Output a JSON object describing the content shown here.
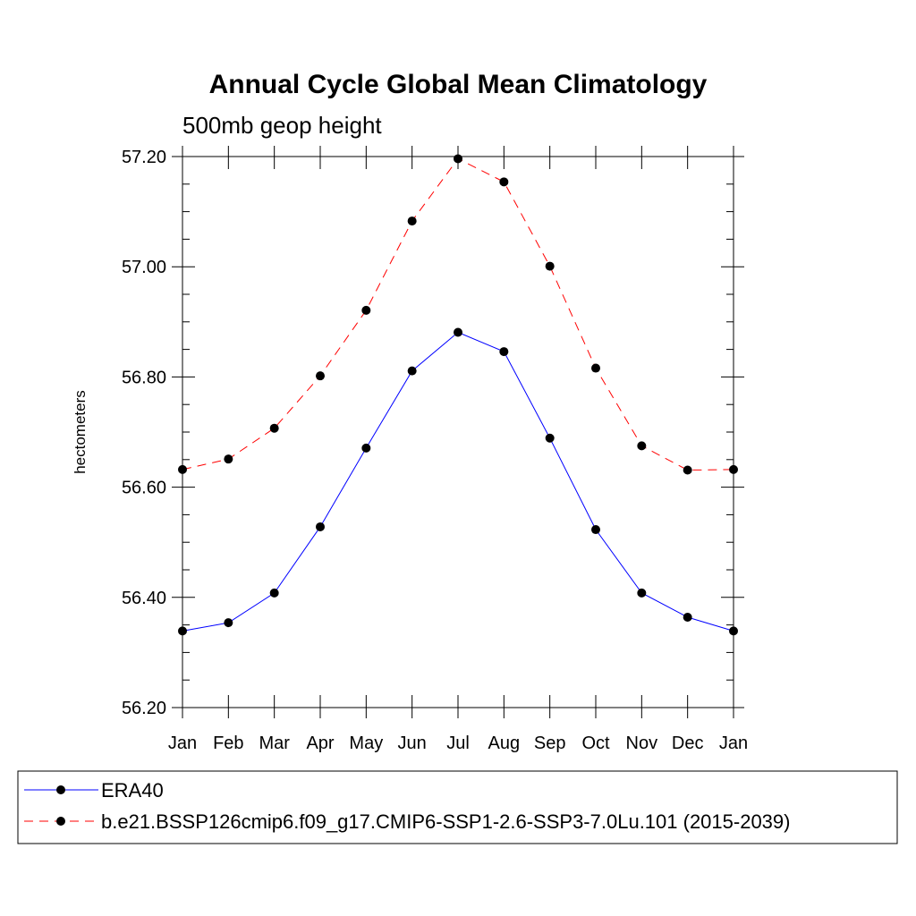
{
  "chart_data": {
    "type": "line",
    "title": "Annual Cycle Global Mean Climatology",
    "subtitle": "500mb geop height",
    "xlabel": "",
    "ylabel": "hectometers",
    "categories": [
      "Jan",
      "Feb",
      "Mar",
      "Apr",
      "May",
      "Jun",
      "Jul",
      "Aug",
      "Sep",
      "Oct",
      "Nov",
      "Dec",
      "Jan"
    ],
    "ylim": [
      56.2,
      57.2
    ],
    "yticks": [
      "56.20",
      "56.40",
      "56.60",
      "56.80",
      "57.00",
      "57.20"
    ],
    "grid": false,
    "legend_position": "bottom",
    "series": [
      {
        "name": "ERA40",
        "color": "#0000ff",
        "dash": "solid",
        "marker": "filled-circle",
        "values": [
          56.339,
          56.354,
          56.408,
          56.528,
          56.671,
          56.811,
          56.881,
          56.846,
          56.689,
          56.523,
          56.408,
          56.364,
          56.339
        ]
      },
      {
        "name": "b.e21.BSSP126cmip6.f09_g17.CMIP6-SSP1-2.6-SSP3-7.0Lu.101 (2015-2039)",
        "color": "#ff0000",
        "dash": "dashed",
        "marker": "filled-circle",
        "values": [
          56.632,
          56.651,
          56.707,
          56.802,
          56.921,
          57.083,
          57.196,
          57.154,
          57.001,
          56.816,
          56.675,
          56.631,
          56.632
        ]
      }
    ]
  }
}
